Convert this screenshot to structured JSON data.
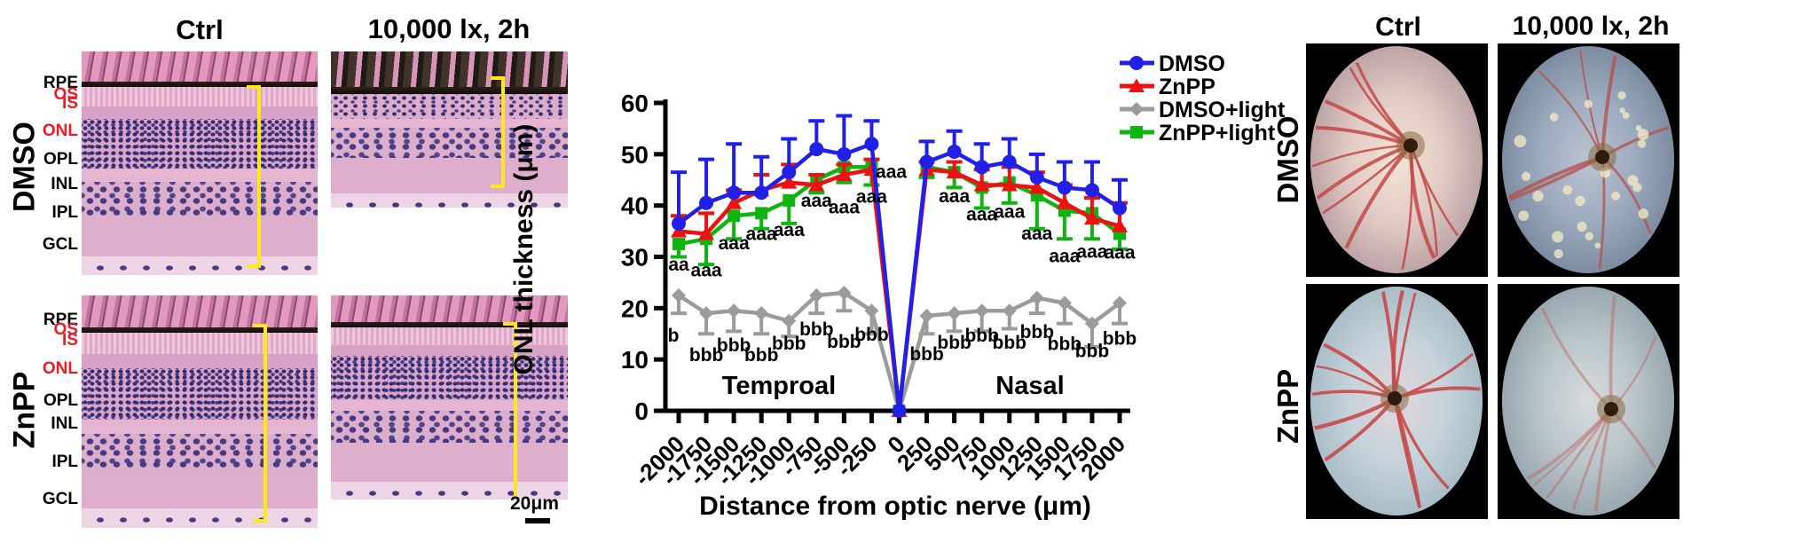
{
  "histology_panel": {
    "col_headers": [
      "Ctrl",
      "10,000 lx, 2h"
    ],
    "row_labels": [
      "DMSO",
      "ZnPP"
    ],
    "layer_labels": [
      {
        "text": "RPE",
        "color": "#000000"
      },
      {
        "text": "OS",
        "color": "#ed1c24"
      },
      {
        "text": "IS",
        "color": "#ed1c24"
      },
      {
        "text": "ONL",
        "color": "#ed1c24"
      },
      {
        "text": "OPL",
        "color": "#000000"
      },
      {
        "text": "INL",
        "color": "#000000"
      },
      {
        "text": "IPL",
        "color": "#000000"
      },
      {
        "text": "GCL",
        "color": "#000000"
      }
    ],
    "scale_bar_label": "20μm"
  },
  "chart_data": {
    "type": "line",
    "xlabel": "Distance from optic nerve (μm)",
    "ylabel": "ONL thickness (μm)",
    "ylim": [
      0,
      60
    ],
    "yticks": [
      0,
      10,
      20,
      30,
      40,
      50,
      60
    ],
    "x": [
      -2000,
      -1750,
      -1500,
      -1250,
      -1000,
      -750,
      -500,
      -250,
      0,
      250,
      500,
      750,
      1000,
      1250,
      1500,
      1750,
      2000
    ],
    "region_labels": [
      "Temproal",
      "Nasal"
    ],
    "legend_position": "top-right",
    "series": [
      {
        "name": "DMSO",
        "color": "#2020e8",
        "marker": "circle",
        "err_dir": "up",
        "values": [
          36.5,
          40.5,
          42.5,
          42.5,
          46.5,
          51,
          50,
          52,
          0,
          48.5,
          50.5,
          47.5,
          48.5,
          45.5,
          43.5,
          43,
          39.5
        ],
        "err": [
          10,
          8.5,
          9.5,
          7,
          6.5,
          5.5,
          7.5,
          4.5,
          0,
          4,
          4,
          4.5,
          4.5,
          4.5,
          5,
          5.5,
          5.5
        ]
      },
      {
        "name": "ZnPP",
        "color": "#ee1111",
        "marker": "triangle",
        "err_dir": "up",
        "values": [
          35,
          34.5,
          40.5,
          43,
          44.5,
          44,
          46,
          47,
          0,
          47,
          46.5,
          44,
          44,
          43.5,
          40.5,
          37.5,
          36
        ],
        "err": [
          3,
          4,
          2.5,
          3,
          3.5,
          2,
          2,
          2,
          0,
          1.5,
          2,
          3,
          3.5,
          3,
          3.5,
          4,
          4.5
        ]
      },
      {
        "name": "DMSO+light",
        "color": "#9b9b9b",
        "marker": "diamond",
        "err_dir": "down",
        "values": [
          22.5,
          19,
          19.5,
          19,
          17.5,
          22.5,
          23,
          19.5,
          0,
          18.5,
          19,
          19.5,
          19.5,
          22,
          21,
          17,
          21
        ],
        "err": [
          3.5,
          4,
          4,
          4,
          3,
          3.5,
          3.5,
          4.5,
          0,
          3.5,
          3.5,
          4,
          3.5,
          3,
          4,
          4.5,
          4
        ]
      },
      {
        "name": "ZnPP+light",
        "color": "#10b410",
        "marker": "square",
        "err_dir": "down",
        "values": [
          32.5,
          33.5,
          38,
          38.5,
          41,
          45,
          47.5,
          47.5,
          0,
          47.5,
          46.5,
          43.5,
          44.5,
          42,
          39,
          38.5,
          34.5
        ],
        "err": [
          2.5,
          5,
          4.5,
          3,
          4.5,
          2.5,
          3,
          3.5,
          0,
          2,
          3,
          4,
          4,
          6.5,
          5.5,
          5,
          3
        ]
      }
    ],
    "annotations": {
      "a_labels": [
        {
          "x": -2000,
          "text": "aa",
          "dy": 30
        },
        {
          "x": -1750,
          "text": "aaa",
          "dy": 42
        },
        {
          "x": -1500,
          "text": "aaa",
          "dy": 38
        },
        {
          "x": -1250,
          "text": "aaa",
          "dy": 30
        },
        {
          "x": -1000,
          "text": "aaa",
          "dy": 40
        },
        {
          "x": -750,
          "text": "aaa",
          "dy": 30
        },
        {
          "x": -500,
          "text": "aaa",
          "dy": 52
        },
        {
          "x": -250,
          "text": "aaa",
          "dy": 40
        },
        {
          "x": 250,
          "text": "aaa",
          "dx": -40,
          "dy": 12
        },
        {
          "x": 500,
          "text": "aaa",
          "dy": 34
        },
        {
          "x": 750,
          "text": "aaa",
          "dy": 37
        },
        {
          "x": 1000,
          "text": "aaa",
          "dy": 40
        },
        {
          "x": 1250,
          "text": "aaa",
          "dy": 50
        },
        {
          "x": 1500,
          "text": "aaa",
          "dy": 58
        },
        {
          "x": 1750,
          "text": "aaa",
          "dy": 50
        },
        {
          "x": 2000,
          "text": "aaa",
          "dy": 28
        }
      ],
      "b_labels": [
        {
          "x": -2000,
          "text": "b",
          "dx": -6,
          "dy": 52
        },
        {
          "x": -1750,
          "text": "bbb",
          "dy": 54
        },
        {
          "x": -1500,
          "text": "bbb",
          "dy": 46
        },
        {
          "x": -1250,
          "text": "bbb",
          "dy": 54
        },
        {
          "x": -1000,
          "text": "bbb",
          "dy": 32
        },
        {
          "x": -750,
          "text": "bbb",
          "dy": 45
        },
        {
          "x": -500,
          "text": "bbb",
          "dy": 62
        },
        {
          "x": -250,
          "text": "bbb",
          "dy": 34
        },
        {
          "x": 250,
          "text": "bbb",
          "dy": 50
        },
        {
          "x": 500,
          "text": "bbb",
          "dy": 40
        },
        {
          "x": 750,
          "text": "bbb",
          "dy": 35
        },
        {
          "x": 1000,
          "text": "bbb",
          "dy": 43
        },
        {
          "x": 1250,
          "text": "bbb",
          "dy": 45
        },
        {
          "x": 1500,
          "text": "bbb",
          "dy": 53
        },
        {
          "x": 1750,
          "text": "bbb",
          "dy": 38
        },
        {
          "x": 2000,
          "text": "bbb",
          "dy": 47
        }
      ]
    }
  },
  "fundus_panel": {
    "col_headers": [
      "Ctrl",
      "10,000 lx, 2h"
    ],
    "row_labels": [
      "DMSO",
      "ZnPP"
    ]
  }
}
